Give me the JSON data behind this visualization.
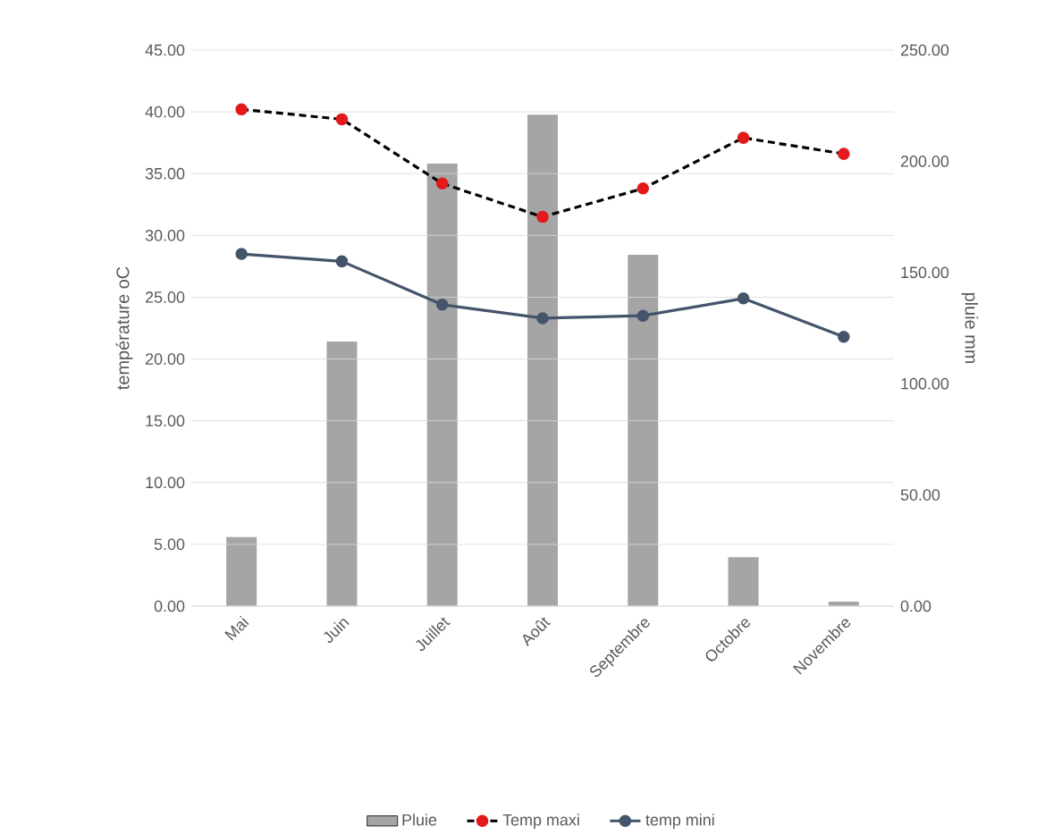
{
  "chart_data": {
    "type": "bar",
    "categories": [
      "Mai",
      "Juin",
      "Juillet",
      "Août",
      "Septembre",
      "Octobre",
      "Novembre"
    ],
    "series": [
      {
        "name": "Pluie",
        "axis": "y2",
        "color": "#a5a5a5",
        "values": [
          31,
          119,
          199,
          221,
          158,
          22,
          2
        ]
      },
      {
        "name": "Temp maxi",
        "type": "line",
        "color": "#e31a1c",
        "line_style": "dashed",
        "values": [
          40.2,
          39.4,
          34.2,
          31.5,
          33.8,
          37.9,
          36.6
        ]
      },
      {
        "name": "temp mini",
        "type": "line",
        "color": "#44546a",
        "line_style": "solid",
        "values": [
          28.5,
          27.9,
          24.4,
          23.3,
          23.5,
          24.9,
          21.8
        ]
      }
    ],
    "ylabel": "température oC",
    "y2label": "pluie mm",
    "ylim": [
      0,
      45
    ],
    "yticks": [
      {
        "value": 0,
        "label": "0.00"
      },
      {
        "value": 5,
        "label": "5.00"
      },
      {
        "value": 10,
        "label": "10.00"
      },
      {
        "value": 15,
        "label": "15.00"
      },
      {
        "value": 20,
        "label": "20.00"
      },
      {
        "value": 25,
        "label": "25.00"
      },
      {
        "value": 30,
        "label": "30.00"
      },
      {
        "value": 35,
        "label": "35.00"
      },
      {
        "value": 40,
        "label": "40.00"
      },
      {
        "value": 45,
        "label": "45.00"
      }
    ],
    "y2lim": [
      0,
      250
    ],
    "y2ticks": [
      {
        "value": 0,
        "label": "0.00"
      },
      {
        "value": 50,
        "label": "50.00"
      },
      {
        "value": 100,
        "label": "100.00"
      },
      {
        "value": 150,
        "label": "150.00"
      },
      {
        "value": 200,
        "label": "200.00"
      },
      {
        "value": 250,
        "label": "250.00"
      }
    ],
    "grid": "y",
    "legend": "bottom",
    "marker": "circle"
  }
}
